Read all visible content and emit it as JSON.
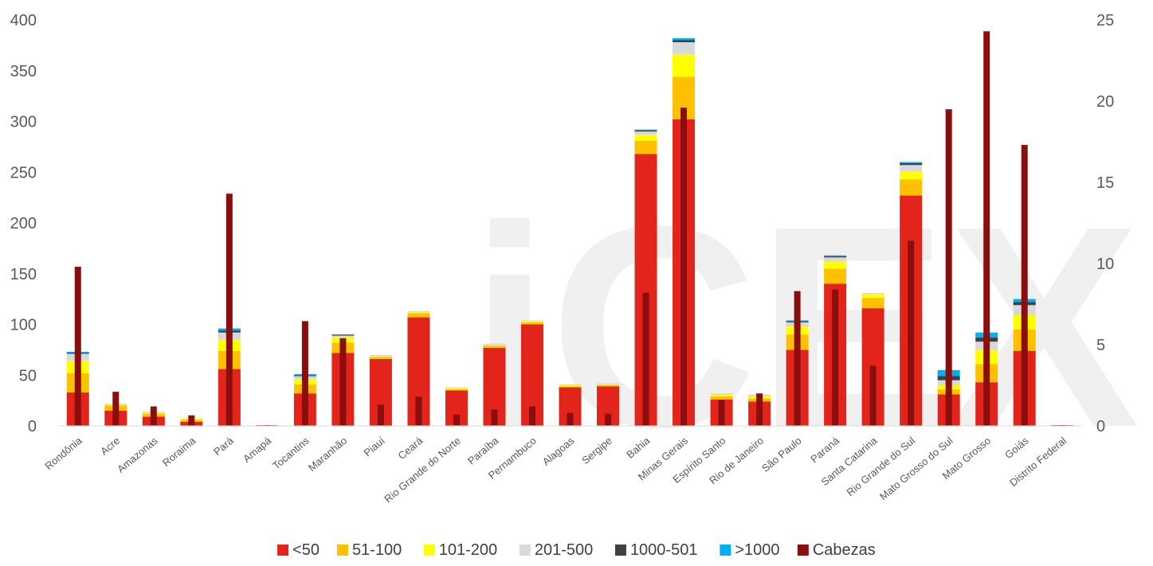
{
  "watermark_text": "iCEX",
  "chart_data": {
    "type": "bar",
    "stacked": true,
    "title": "",
    "xlabel": "",
    "ylabel": "",
    "ylim": [
      0,
      400
    ],
    "y2lim": [
      0,
      25
    ],
    "yticks": [
      0,
      50,
      100,
      150,
      200,
      250,
      300,
      350,
      400
    ],
    "y2ticks": [
      0,
      5,
      10,
      15,
      20,
      25
    ],
    "grid": false,
    "legend_position": "bottom",
    "categories": [
      "Rondônia",
      "Acre",
      "Amazonas",
      "Roraima",
      "Pará",
      "Amapá",
      "Tocantins",
      "Maranhão",
      "Piauí",
      "Ceará",
      "Rio Grande do Norte",
      "Paraíba",
      "Pernambuco",
      "Alagoas",
      "Sergipe",
      "Bahia",
      "Minas Gerais",
      "Espírito Santo",
      "Rio de Janeiro",
      "São Paulo",
      "Paraná",
      "Santa Catarina",
      "Rio Grande do Sul",
      "Mato Grosso do Sul",
      "Mato Grosso",
      "Goiás",
      "Distrito Federal"
    ],
    "series": [
      {
        "name": "<50",
        "color": "#e3241b",
        "axis": "left",
        "values": [
          33,
          15,
          9,
          4,
          56,
          0,
          32,
          72,
          66,
          107,
          35,
          77,
          100,
          38,
          39,
          268,
          302,
          26,
          24,
          75,
          140,
          116,
          227,
          31,
          43,
          74,
          0
        ]
      },
      {
        "name": "51-100",
        "color": "#ffc000",
        "axis": "left",
        "values": [
          19,
          5,
          3,
          2,
          18,
          0,
          9,
          10,
          2,
          4,
          1,
          2,
          2,
          1,
          1,
          13,
          42,
          3,
          3,
          15,
          15,
          10,
          16,
          5,
          18,
          21,
          0
        ]
      },
      {
        "name": "101-200",
        "color": "#ffff00",
        "axis": "left",
        "values": [
          12,
          1,
          1,
          1,
          11,
          0,
          5,
          5,
          1,
          1,
          1,
          1,
          1,
          1,
          1,
          6,
          22,
          2,
          2,
          8,
          7,
          4,
          8,
          4,
          14,
          14,
          0
        ]
      },
      {
        "name": "201-500",
        "color": "#d9d9d9",
        "axis": "left",
        "values": [
          7,
          1,
          1,
          0,
          7,
          0,
          3,
          2,
          1,
          1,
          1,
          1,
          1,
          1,
          1,
          3,
          12,
          1,
          2,
          4,
          4,
          1,
          6,
          5,
          8,
          10,
          0
        ]
      },
      {
        "name": "1000-501",
        "color": "#404040",
        "axis": "left",
        "values": [
          1,
          0,
          0,
          0,
          2,
          0,
          1,
          1,
          0,
          0,
          0,
          0,
          0,
          0,
          0,
          1,
          2,
          0,
          0,
          1,
          1,
          0,
          2,
          4,
          4,
          3,
          0
        ]
      },
      {
        "name": ">1000",
        "color": "#00b0f0",
        "axis": "left",
        "values": [
          1,
          0,
          0,
          0,
          2,
          0,
          1,
          0,
          0,
          0,
          0,
          0,
          0,
          0,
          0,
          1,
          2,
          0,
          0,
          1,
          1,
          0,
          1,
          6,
          5,
          3,
          0
        ]
      },
      {
        "name": "Cabezas",
        "color": "#8b0e0e",
        "axis": "right",
        "type": "bar",
        "values": [
          9.8,
          2.1,
          1.2,
          0.65,
          14.3,
          0.05,
          6.45,
          5.4,
          1.3,
          1.8,
          0.7,
          1.0,
          1.2,
          0.8,
          0.75,
          8.2,
          19.6,
          1.6,
          2.0,
          8.3,
          8.4,
          3.7,
          11.4,
          19.5,
          24.3,
          17.3,
          0.05
        ]
      }
    ]
  }
}
